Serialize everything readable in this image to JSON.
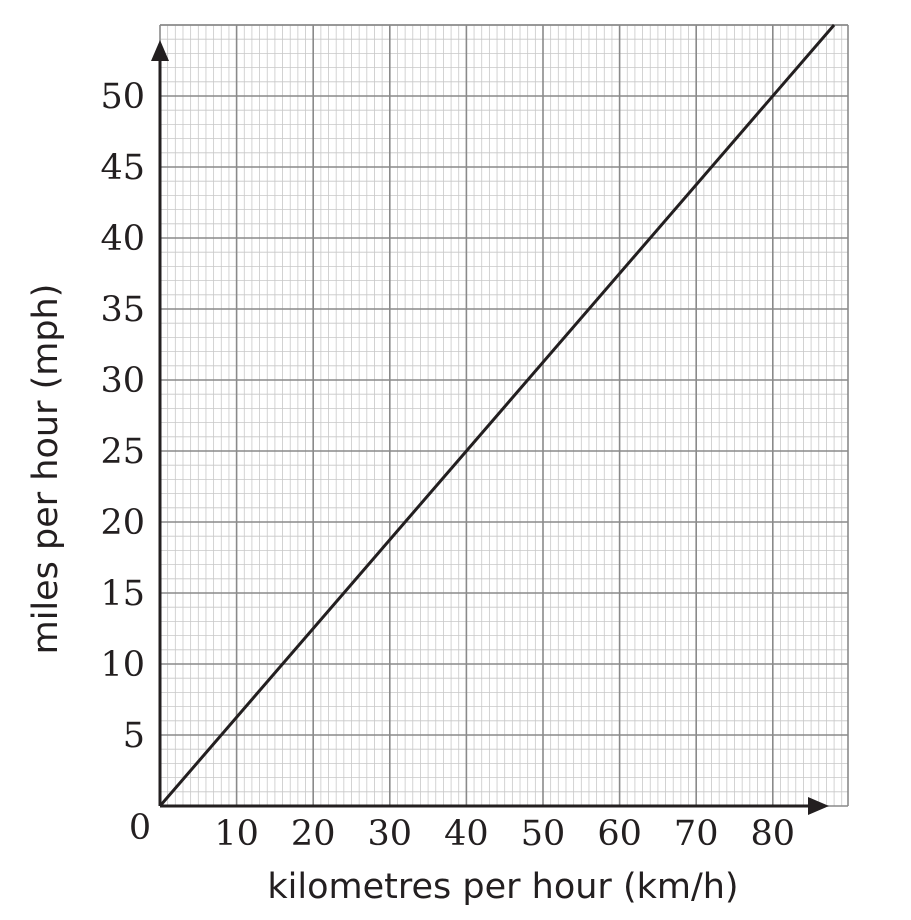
{
  "chart_data": {
    "type": "line",
    "title": "",
    "xlabel": "kilometres per hour (km/h)",
    "ylabel": "miles per hour (mph)",
    "origin_label": "0",
    "xlim": [
      0,
      90
    ],
    "ylim": [
      0,
      55
    ],
    "x_ticks": [
      10,
      20,
      30,
      40,
      50,
      60,
      70,
      80
    ],
    "y_ticks": [
      5,
      10,
      15,
      20,
      25,
      30,
      35,
      40,
      45,
      50
    ],
    "x_tick_labels": [
      "10",
      "20",
      "30",
      "40",
      "50",
      "60",
      "70",
      "80"
    ],
    "y_tick_labels": [
      "5",
      "10",
      "15",
      "20",
      "25",
      "30",
      "35",
      "40",
      "45",
      "50"
    ],
    "grid": true,
    "series": [
      {
        "x": [
          0,
          88
        ],
        "y": [
          0,
          55
        ]
      }
    ],
    "colors": {
      "line": "#231f20",
      "grid_major": "#8a8a8a",
      "grid_minor": "#c8c8c8",
      "axis": "#231f20"
    }
  }
}
